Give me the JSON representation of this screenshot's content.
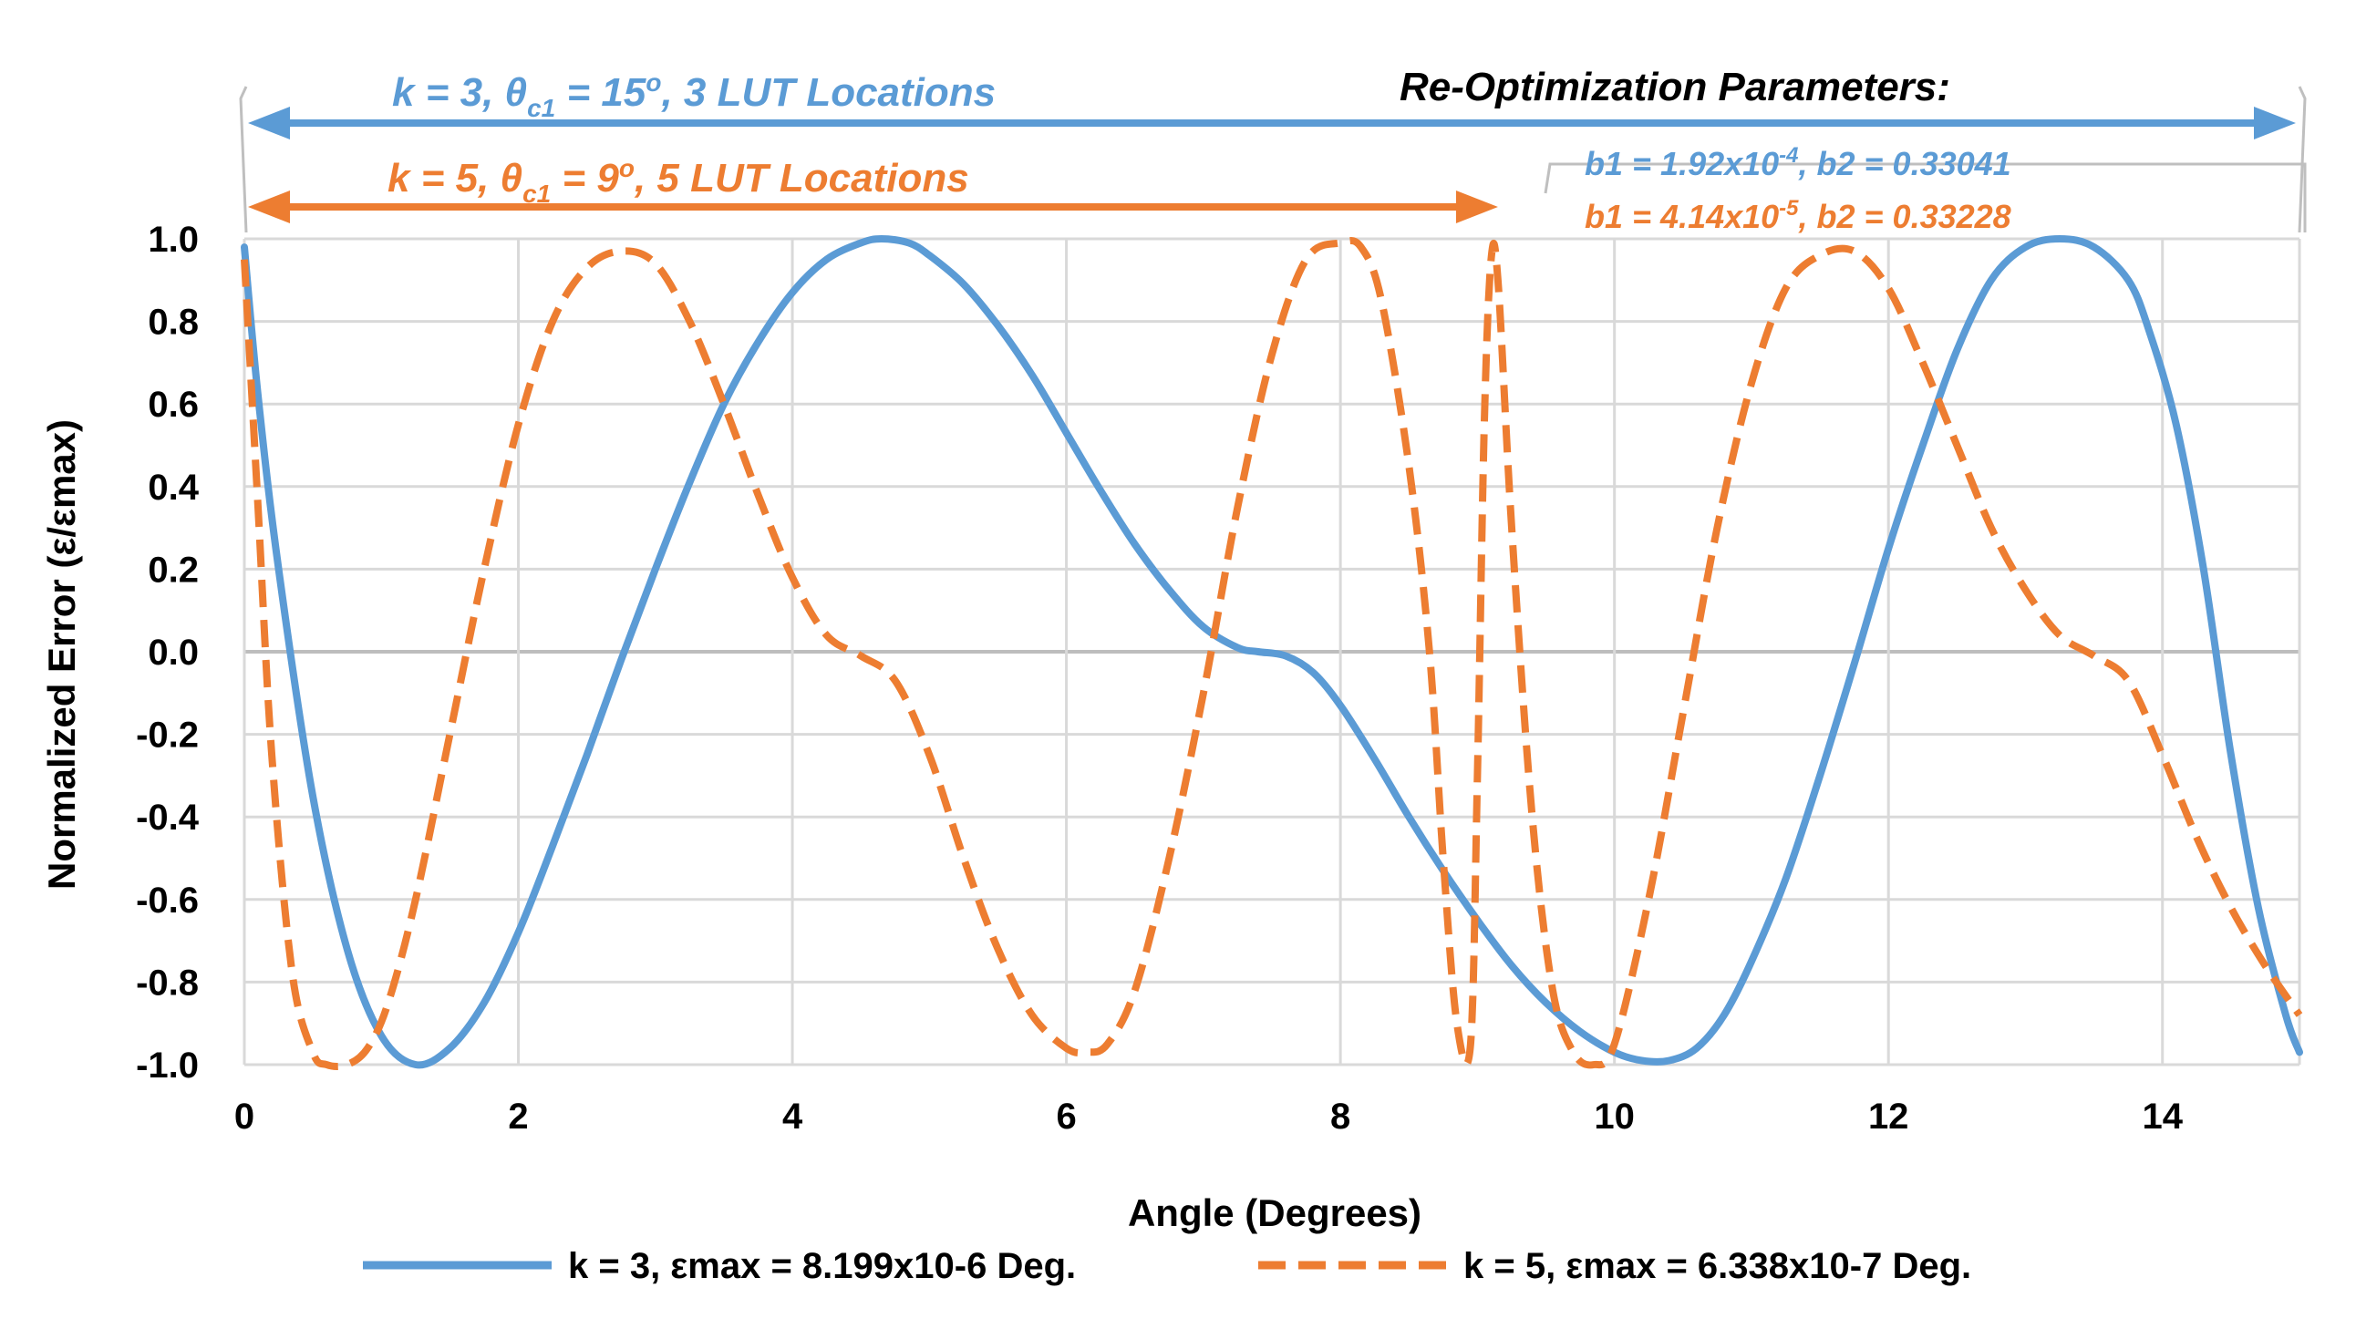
{
  "chart_data": {
    "type": "line",
    "title": "",
    "xlabel": "Angle (Degrees)",
    "ylabel": "Normalized Error (ε/εmax)",
    "xlim": [
      0,
      15
    ],
    "ylim": [
      -1.0,
      1.0
    ],
    "x_ticks": [
      0,
      2,
      4,
      6,
      8,
      10,
      12,
      14
    ],
    "x_tick_labels": [
      "0",
      "2",
      "4",
      "6",
      "8",
      "10",
      "12",
      "14"
    ],
    "y_ticks": [
      1.0,
      0.8,
      0.6,
      0.4,
      0.2,
      0.0,
      -0.2,
      -0.4,
      -0.6,
      -0.8,
      -1.0
    ],
    "y_tick_labels": [
      "1.0",
      "0.8",
      "0.6",
      "0.4",
      "0.2",
      "0.0",
      "-0.2",
      "-0.4",
      "-0.6",
      "-0.8",
      "-1.0"
    ],
    "grid": true,
    "legend_position": "bottom",
    "series": [
      {
        "name": "k = 3, εmax = 8.199x10-6 Deg.",
        "color": "#5b9bd5",
        "style": "solid",
        "x": [
          0,
          0.1,
          0.25,
          0.5,
          0.75,
          1.0,
          1.25,
          1.5,
          1.75,
          2.0,
          2.25,
          2.5,
          2.75,
          3.0,
          3.25,
          3.5,
          3.75,
          4.0,
          4.25,
          4.5,
          4.65,
          4.85,
          5.0,
          5.25,
          5.5,
          5.75,
          6.0,
          6.25,
          6.5,
          6.75,
          7.0,
          7.25,
          7.4,
          7.6,
          7.8,
          8.0,
          8.25,
          8.5,
          8.75,
          9.0,
          9.25,
          9.5,
          9.75,
          10.0,
          10.2,
          10.4,
          10.6,
          10.8,
          11.0,
          11.25,
          11.5,
          11.75,
          12.0,
          12.25,
          12.5,
          12.75,
          13.0,
          13.25,
          13.5,
          13.75,
          13.9,
          14.1,
          14.3,
          14.5,
          14.7,
          14.9,
          15.0
        ],
        "y": [
          0.98,
          0.62,
          0.2,
          -0.35,
          -0.72,
          -0.93,
          -1.0,
          -0.96,
          -0.85,
          -0.68,
          -0.47,
          -0.25,
          -0.02,
          0.2,
          0.41,
          0.6,
          0.75,
          0.87,
          0.95,
          0.99,
          1.0,
          0.99,
          0.96,
          0.89,
          0.79,
          0.67,
          0.53,
          0.39,
          0.26,
          0.15,
          0.06,
          0.01,
          0.0,
          -0.01,
          -0.05,
          -0.13,
          -0.26,
          -0.4,
          -0.53,
          -0.65,
          -0.76,
          -0.85,
          -0.92,
          -0.97,
          -0.99,
          -0.99,
          -0.96,
          -0.88,
          -0.75,
          -0.55,
          -0.3,
          -0.03,
          0.25,
          0.5,
          0.73,
          0.9,
          0.98,
          1.0,
          0.98,
          0.9,
          0.78,
          0.55,
          0.2,
          -0.25,
          -0.62,
          -0.88,
          -0.97
        ]
      },
      {
        "name": "k = 5, εmax = 6.338x10-7 Deg.",
        "color": "#ed7d31",
        "style": "dashed",
        "x": [
          0,
          0.1,
          0.2,
          0.35,
          0.5,
          0.6,
          0.75,
          0.9,
          1.05,
          1.25,
          1.5,
          1.75,
          2.0,
          2.25,
          2.5,
          2.75,
          3.0,
          3.25,
          3.5,
          3.75,
          4.0,
          4.25,
          4.5,
          4.75,
          5.0,
          5.25,
          5.5,
          5.75,
          6.0,
          6.15,
          6.3,
          6.5,
          6.75,
          7.0,
          7.25,
          7.5,
          7.75,
          8.0,
          8.15,
          8.3,
          8.5,
          8.65,
          8.75,
          8.85,
          8.95,
          9.0,
          9.05,
          9.1,
          9.15,
          9.25,
          9.4,
          9.55,
          9.7,
          9.85,
          10.0,
          10.25,
          10.5,
          10.75,
          11.0,
          11.25,
          11.5,
          11.75,
          12.0,
          12.25,
          12.5,
          12.75,
          13.0,
          13.25,
          13.5,
          13.75,
          14.0,
          14.25,
          14.5,
          14.75,
          15.0
        ],
        "y": [
          0.95,
          0.35,
          -0.25,
          -0.78,
          -0.97,
          -1.0,
          -1.0,
          -0.96,
          -0.85,
          -0.6,
          -0.2,
          0.2,
          0.55,
          0.8,
          0.93,
          0.97,
          0.94,
          0.8,
          0.6,
          0.38,
          0.18,
          0.04,
          -0.01,
          -0.07,
          -0.25,
          -0.5,
          -0.72,
          -0.88,
          -0.96,
          -0.97,
          -0.95,
          -0.82,
          -0.5,
          -0.1,
          0.35,
          0.72,
          0.95,
          0.99,
          0.98,
          0.85,
          0.45,
          0.0,
          -0.5,
          -0.9,
          -0.95,
          -0.3,
          0.55,
          0.95,
          0.9,
          0.3,
          -0.4,
          -0.82,
          -0.97,
          -1.0,
          -0.95,
          -0.6,
          -0.15,
          0.3,
          0.65,
          0.88,
          0.96,
          0.97,
          0.88,
          0.7,
          0.5,
          0.3,
          0.15,
          0.04,
          -0.01,
          -0.07,
          -0.25,
          -0.45,
          -0.62,
          -0.76,
          -0.88
        ]
      }
    ],
    "annotations": {
      "k3_range": "k = 3, θ",
      "k3_sub": "c1",
      "k3_mid": " = 15",
      "k3_sup": "o",
      "k3_rest": ", 3 LUT Locations",
      "k5_range": "k = 5, θ",
      "k5_sub": "c1",
      "k5_mid": " = 9",
      "k5_sup": "o",
      "k5_rest": ", 5 LUT Locations",
      "reopt_title": "Re-Optimization Parameters:",
      "b_k3_a": "b1 = 1.92x10",
      "b_k3_sup": "-4",
      "b_k3_b": ", b2 = 0.33041",
      "b_k5_a": "b1 = 4.14x10",
      "b_k5_sup": "-5",
      "b_k5_b": ", b2 = 0.33228",
      "k3_span_deg": [
        0,
        15
      ],
      "k5_span_deg": [
        0,
        9.15
      ]
    }
  }
}
